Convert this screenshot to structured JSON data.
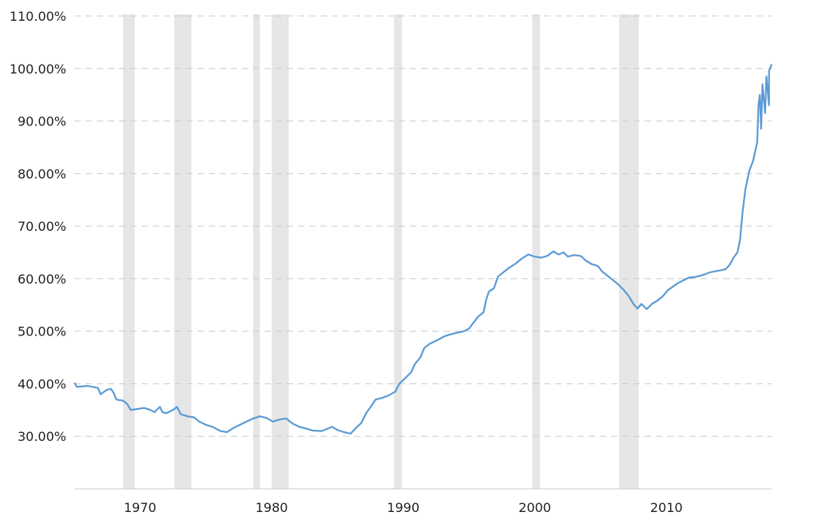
{
  "chart_data": {
    "type": "line",
    "title": "",
    "xlabel": "",
    "ylabel": "",
    "xlim": [
      1965,
      2018
    ],
    "ylim": [
      20,
      110
    ],
    "x_ticks": [
      {
        "value": 1970,
        "label": "1970"
      },
      {
        "value": 1980,
        "label": "1980"
      },
      {
        "value": 1990,
        "label": "1990"
      },
      {
        "value": 2000,
        "label": "2000"
      },
      {
        "value": 2010,
        "label": "2010"
      }
    ],
    "y_ticks": [
      {
        "value": 30,
        "label": "30.00%"
      },
      {
        "value": 40,
        "label": "40.00%"
      },
      {
        "value": 50,
        "label": "50.00%"
      },
      {
        "value": 60,
        "label": "60.00%"
      },
      {
        "value": 70,
        "label": "70.00%"
      },
      {
        "value": 80,
        "label": "80.00%"
      },
      {
        "value": 90,
        "label": "90.00%"
      },
      {
        "value": 100,
        "label": "100.00%"
      },
      {
        "value": 110,
        "label": "110.00%"
      }
    ],
    "grid": true,
    "recession_periods": [
      [
        1968.7,
        1969.6
      ],
      [
        1972.6,
        1973.9
      ],
      [
        1978.6,
        1979.1
      ],
      [
        1980.0,
        1981.3
      ],
      [
        1989.3,
        1989.9
      ],
      [
        1999.8,
        2000.4
      ],
      [
        2006.4,
        2007.9
      ]
    ],
    "series": [
      {
        "color": "#5b9bd5",
        "points": [
          [
            1965.0,
            40.2
          ],
          [
            1965.2,
            39.4
          ],
          [
            1966.0,
            39.6
          ],
          [
            1966.8,
            39.2
          ],
          [
            1967.0,
            38.0
          ],
          [
            1967.5,
            38.9
          ],
          [
            1967.8,
            39.0
          ],
          [
            1968.0,
            38.2
          ],
          [
            1968.2,
            37.0
          ],
          [
            1968.7,
            36.8
          ],
          [
            1969.0,
            36.2
          ],
          [
            1969.3,
            35.0
          ],
          [
            1969.8,
            35.2
          ],
          [
            1970.3,
            35.4
          ],
          [
            1970.8,
            35.0
          ],
          [
            1971.1,
            34.6
          ],
          [
            1971.5,
            35.6
          ],
          [
            1971.7,
            34.6
          ],
          [
            1972.0,
            34.4
          ],
          [
            1972.5,
            35.0
          ],
          [
            1972.8,
            35.6
          ],
          [
            1973.1,
            34.2
          ],
          [
            1973.6,
            33.8
          ],
          [
            1974.1,
            33.6
          ],
          [
            1974.5,
            32.8
          ],
          [
            1975.0,
            32.2
          ],
          [
            1975.5,
            31.8
          ],
          [
            1976.1,
            31.0
          ],
          [
            1976.6,
            30.8
          ],
          [
            1977.1,
            31.6
          ],
          [
            1977.6,
            32.2
          ],
          [
            1978.1,
            32.8
          ],
          [
            1978.6,
            33.4
          ],
          [
            1979.1,
            33.8
          ],
          [
            1979.6,
            33.5
          ],
          [
            1980.1,
            32.8
          ],
          [
            1980.6,
            33.2
          ],
          [
            1981.1,
            33.4
          ],
          [
            1981.6,
            32.4
          ],
          [
            1982.1,
            31.8
          ],
          [
            1982.6,
            31.5
          ],
          [
            1983.1,
            31.1
          ],
          [
            1983.8,
            31.0
          ],
          [
            1984.2,
            31.4
          ],
          [
            1984.6,
            31.8
          ],
          [
            1985.0,
            31.2
          ],
          [
            1985.5,
            30.8
          ],
          [
            1986.0,
            30.5
          ],
          [
            1986.4,
            31.6
          ],
          [
            1986.8,
            32.5
          ],
          [
            1987.2,
            34.5
          ],
          [
            1987.5,
            35.5
          ],
          [
            1987.9,
            37.0
          ],
          [
            1988.4,
            37.3
          ],
          [
            1988.9,
            37.8
          ],
          [
            1989.4,
            38.5
          ],
          [
            1989.7,
            40.0
          ],
          [
            1990.2,
            41.2
          ],
          [
            1990.6,
            42.2
          ],
          [
            1990.9,
            43.8
          ],
          [
            1991.3,
            45.0
          ],
          [
            1991.6,
            46.8
          ],
          [
            1992.0,
            47.6
          ],
          [
            1992.6,
            48.3
          ],
          [
            1993.1,
            49.0
          ],
          [
            1993.6,
            49.4
          ],
          [
            1994.1,
            49.7
          ],
          [
            1994.6,
            50.0
          ],
          [
            1995.0,
            50.5
          ],
          [
            1995.3,
            51.5
          ],
          [
            1995.7,
            52.8
          ],
          [
            1996.1,
            53.6
          ],
          [
            1996.3,
            56.0
          ],
          [
            1996.5,
            57.5
          ],
          [
            1996.9,
            58.2
          ],
          [
            1997.2,
            60.4
          ],
          [
            1997.5,
            61.0
          ],
          [
            1998.0,
            62.0
          ],
          [
            1998.5,
            62.8
          ],
          [
            1999.0,
            63.8
          ],
          [
            1999.5,
            64.6
          ],
          [
            2000.0,
            64.2
          ],
          [
            2000.5,
            64.0
          ],
          [
            2001.0,
            64.4
          ],
          [
            2001.4,
            65.2
          ],
          [
            2001.8,
            64.6
          ],
          [
            2002.2,
            65.0
          ],
          [
            2002.5,
            64.2
          ],
          [
            2003.0,
            64.5
          ],
          [
            2003.5,
            64.3
          ],
          [
            2003.9,
            63.4
          ],
          [
            2004.3,
            62.8
          ],
          [
            2004.8,
            62.4
          ],
          [
            2005.1,
            61.4
          ],
          [
            2005.5,
            60.6
          ],
          [
            2005.9,
            59.8
          ],
          [
            2006.3,
            59.0
          ],
          [
            2006.7,
            58.0
          ],
          [
            2007.1,
            56.8
          ],
          [
            2007.5,
            55.2
          ],
          [
            2007.8,
            54.3
          ],
          [
            2008.1,
            55.2
          ],
          [
            2008.5,
            54.2
          ],
          [
            2008.9,
            55.2
          ],
          [
            2009.3,
            55.8
          ],
          [
            2009.7,
            56.6
          ],
          [
            2010.1,
            57.8
          ],
          [
            2010.5,
            58.5
          ],
          [
            2010.9,
            59.2
          ],
          [
            2011.3,
            59.7
          ],
          [
            2011.7,
            60.2
          ],
          [
            2012.1,
            60.3
          ],
          [
            2012.5,
            60.5
          ],
          [
            2012.9,
            60.8
          ],
          [
            2013.3,
            61.2
          ],
          [
            2013.7,
            61.4
          ],
          [
            2014.1,
            61.6
          ],
          [
            2014.5,
            61.8
          ],
          [
            2014.8,
            62.6
          ],
          [
            2015.1,
            64.0
          ],
          [
            2015.4,
            65.0
          ],
          [
            2015.6,
            67.5
          ],
          [
            2015.8,
            73.0
          ],
          [
            2016.0,
            77.0
          ],
          [
            2016.3,
            80.5
          ],
          [
            2016.6,
            82.5
          ],
          [
            2016.9,
            86.0
          ],
          [
            2017.2,
            88.5
          ],
          [
            2017.5,
            91.5
          ],
          [
            2017.8,
            93.0
          ],
          [
            2017.0,
            93.0
          ],
          [
            2017.1,
            95.0
          ],
          [
            2017.3,
            97.0
          ],
          [
            2017.6,
            98.5
          ],
          [
            2017.8,
            99.5
          ],
          [
            2018.0,
            100.8
          ],
          [
            2018.0,
            100.8
          ]
        ]
      }
    ]
  }
}
